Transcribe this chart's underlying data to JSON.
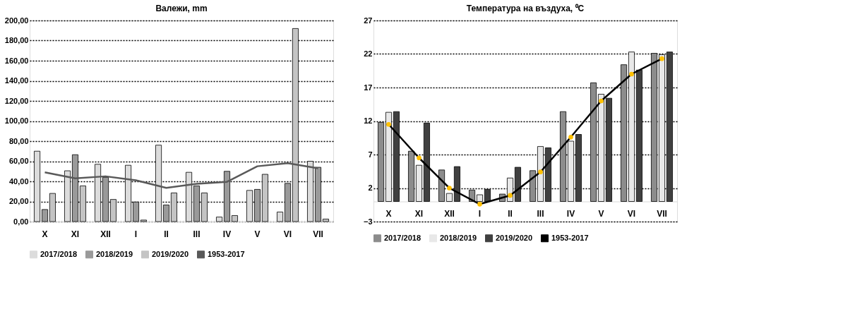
{
  "chart_data": [
    {
      "type": "bar",
      "title": "Валежи, mm",
      "categories": [
        "X",
        "XI",
        "XII",
        "I",
        "II",
        "III",
        "IV",
        "V",
        "VI",
        "VII"
      ],
      "series": [
        {
          "name": "2017/2018",
          "color": "#dcdcdc",
          "values": [
            70,
            50.5,
            57,
            56,
            76,
            49,
            4.5,
            31,
            9.5,
            60
          ]
        },
        {
          "name": "2018/2019",
          "color": "#9a9a9a",
          "values": [
            12,
            66.5,
            44,
            19.5,
            16.5,
            35.5,
            50,
            32,
            38,
            54
          ]
        },
        {
          "name": "2019/2020",
          "color": "#c4c4c4",
          "values": [
            28,
            35.5,
            22,
            1.5,
            28.5,
            28.5,
            6,
            47,
            192,
            2.5
          ]
        },
        {
          "name": "1953-2017",
          "type": "line",
          "color": "#595959",
          "values": [
            49,
            43,
            45,
            41,
            33.5,
            37.5,
            39.5,
            55,
            58,
            53
          ]
        }
      ],
      "ylim": [
        0,
        200
      ],
      "yticks": [
        {
          "value": 0,
          "label": "0,00"
        },
        {
          "value": 20,
          "label": "20,00"
        },
        {
          "value": 40,
          "label": "40,00"
        },
        {
          "value": 60,
          "label": "60,00"
        },
        {
          "value": 80,
          "label": "80,00"
        },
        {
          "value": 100,
          "label": "100,00"
        },
        {
          "value": 120,
          "label": "120,00"
        },
        {
          "value": 140,
          "label": "140,00"
        },
        {
          "value": 160,
          "label": "160,00"
        },
        {
          "value": 180,
          "label": "180,00"
        },
        {
          "value": 200,
          "label": "200,00"
        }
      ],
      "grid": "y",
      "legend": "bottom",
      "line_style": "solid"
    },
    {
      "type": "bar",
      "title": "Температура на въздуха, ⁰C",
      "categories": [
        "X",
        "XI",
        "XII",
        "I",
        "II",
        "III",
        "IV",
        "V",
        "VI",
        "VII"
      ],
      "series": [
        {
          "name": "2017/2018",
          "color": "#8c8c8c",
          "values": [
            11.8,
            7.5,
            4.7,
            1.7,
            1.1,
            4.6,
            13.4,
            17.7,
            20.4,
            22.1
          ]
        },
        {
          "name": "2018/2019",
          "color": "#e8e8e8",
          "values": [
            13.3,
            5.4,
            1.2,
            1.0,
            3.5,
            8.2,
            9.0,
            16.0,
            22.3,
            21.9
          ]
        },
        {
          "name": "2019/2020",
          "color": "#404040",
          "values": [
            13.4,
            11.7,
            5.2,
            1.8,
            5.1,
            8.0,
            10.0,
            15.4,
            19.6,
            22.3
          ]
        },
        {
          "name": "1953-2017",
          "type": "line",
          "color": "#000000",
          "values": [
            11.5,
            6.5,
            2.0,
            -0.4,
            0.9,
            4.4,
            9.6,
            15.0,
            19.0,
            21.3
          ]
        }
      ],
      "ylim": [
        -3,
        27
      ],
      "yticks": [
        -3,
        2,
        7,
        12,
        17,
        22,
        27
      ],
      "grid": "y",
      "legend": "bottom",
      "marker": "circle",
      "line_style": "solid"
    }
  ]
}
